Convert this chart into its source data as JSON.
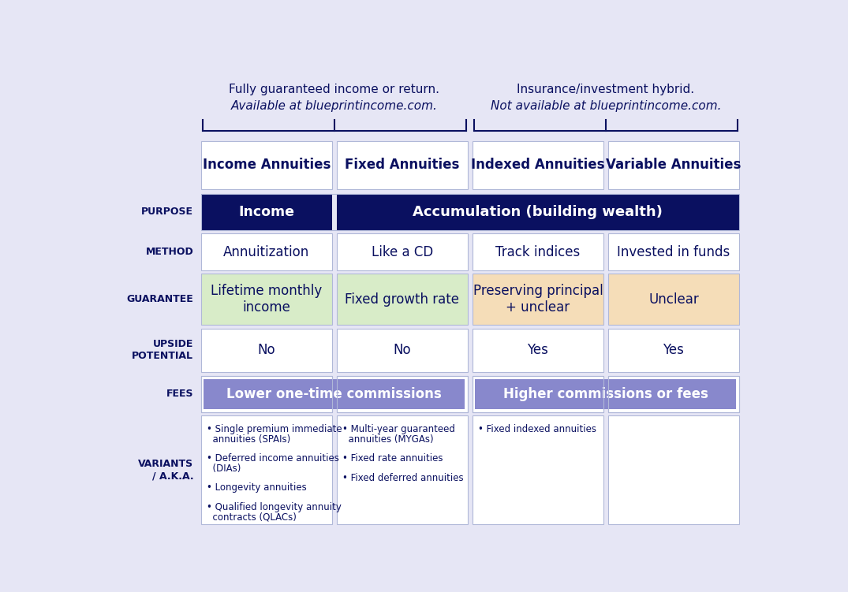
{
  "bg_color": "#e6e6f5",
  "dark_navy": "#0a1060",
  "white": "#ffffff",
  "green_bg": "#d8ecc8",
  "peach_bg": "#f5ddb8",
  "purple_fees": "#8888cc",
  "col_headers": [
    "Income Annuities",
    "Fixed Annuities",
    "Indexed Annuities",
    "Variable Annuities"
  ],
  "header_left_line1": "Fully guaranteed income or return.",
  "header_left_line2": "Available at blueprintincome.com.",
  "header_right_line1": "Insurance/investment hybrid.",
  "header_right_line2": "Not available at blueprintincome.com.",
  "method_row": [
    "Annuitization",
    "Like a CD",
    "Track indices",
    "Invested in funds"
  ],
  "guarantee_texts": [
    "Lifetime monthly\nincome",
    "Fixed growth rate",
    "Preserving principal\n+ unclear",
    "Unclear"
  ],
  "guarantee_bgs": [
    "#d8ecc8",
    "#d8ecc8",
    "#f5ddb8",
    "#f5ddb8"
  ],
  "upside_row": [
    "No",
    "No",
    "Yes",
    "Yes"
  ],
  "fees_left": "Lower one-time commissions",
  "fees_right": "Higher commissions or fees",
  "variants_c0": [
    "• Single premium immediate annuities (SPAIs)",
    "• Deferred income annuities (DIAs)",
    "• Longevity annuities",
    "• Qualified longevity annuity contracts (QLACs)"
  ],
  "variants_c1": [
    "• Multi-year guaranteed annuities (MYGAs)",
    "• Fixed rate annuities",
    "• Fixed deferred annuities"
  ],
  "variants_c2": [
    "• Fixed indexed annuities"
  ],
  "cell_edge": "#b0b8d8",
  "cell_lw": 0.8
}
